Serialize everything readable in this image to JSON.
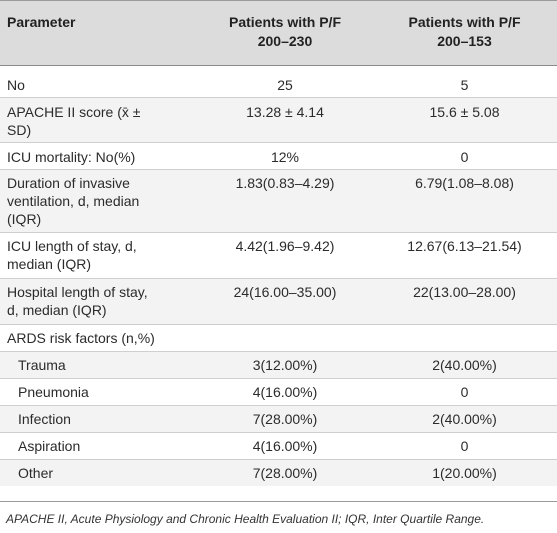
{
  "table": {
    "headers": {
      "parameter": "Parameter",
      "group1_line1": "Patients with P/F",
      "group1_line2": "200–230",
      "group2_line1": "Patients with P/F",
      "group2_line2": "200–153"
    },
    "rows": [
      {
        "label1": "No",
        "label2": "",
        "v1": "25",
        "v2": "5"
      },
      {
        "label1": "APACHE II score (x̄ ±",
        "label2": "SD)",
        "v1": "13.28 ± 4.14",
        "v2": "15.6 ± 5.08"
      },
      {
        "label1": "ICU mortality: No(%)",
        "label2": "",
        "v1": "12%",
        "v2": "0"
      },
      {
        "label1": "Duration of invasive",
        "label2": "ventilation, d, median",
        "label3": "(IQR)",
        "v1": "1.83(0.83–4.29)",
        "v2": "6.79(1.08–8.08)"
      },
      {
        "label1": "ICU length of stay, d,",
        "label2": "median (IQR)",
        "v1": "4.42(1.96–9.42)",
        "v2": "12.67(6.13–21.54)"
      },
      {
        "label1": "Hospital length of stay,",
        "label2": "d, median (IQR)",
        "v1": "24(16.00–35.00)",
        "v2": "22(13.00–28.00)"
      },
      {
        "label1": "ARDS risk factors (n,%)",
        "label2": "",
        "v1": "",
        "v2": ""
      },
      {
        "label1": "Trauma",
        "label2": "",
        "v1": "3(12.00%)",
        "v2": "2(40.00%)"
      },
      {
        "label1": "Pneumonia",
        "label2": "",
        "v1": "4(16.00%)",
        "v2": "0"
      },
      {
        "label1": "Infection",
        "label2": "",
        "v1": "7(28.00%)",
        "v2": "2(40.00%)"
      },
      {
        "label1": "Aspiration",
        "label2": "",
        "v1": "4(16.00%)",
        "v2": "0"
      },
      {
        "label1": "Other",
        "label2": "",
        "v1": "7(28.00%)",
        "v2": "1(20.00%)"
      }
    ]
  },
  "footnote": "APACHE II, Acute Physiology and Chronic Health Evaluation II; IQR, Inter Quartile Range."
}
